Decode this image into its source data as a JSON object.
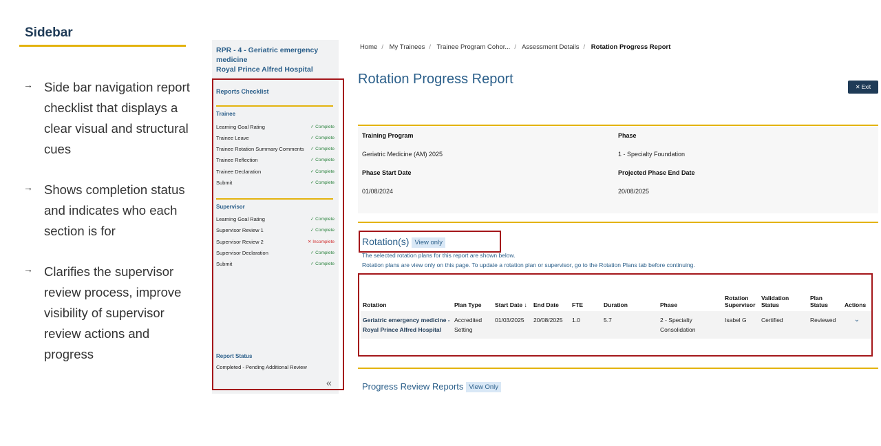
{
  "annotation": {
    "title": "Sidebar",
    "bullets": [
      "Side bar navigation report checklist that displays a clear visual and structural cues",
      "Shows completion status and indicates who each section is for",
      "Clarifies the supervisor review process, improve visibility of supervisor review actions and progress"
    ]
  },
  "sidebar": {
    "context_line1": "RPR - 4 - Geriatric emergency medicine",
    "context_line2": "Royal Prince Alfred Hospital",
    "checklist_title": "Reports Checklist",
    "trainee": {
      "title": "Trainee",
      "items": [
        {
          "label": "Learning Goal Rating",
          "status": "Complete"
        },
        {
          "label": "Trainee Leave",
          "status": "Complete"
        },
        {
          "label": "Trainee Rotation Summary Comments",
          "status": "Complete"
        },
        {
          "label": "Trainee Reflection",
          "status": "Complete"
        },
        {
          "label": "Trainee Declaration",
          "status": "Complete"
        },
        {
          "label": "Submit",
          "status": "Complete"
        }
      ]
    },
    "supervisor": {
      "title": "Supervisor",
      "items": [
        {
          "label": "Learning Goal Rating",
          "status": "Complete"
        },
        {
          "label": "Supervisor Review 1",
          "status": "Complete"
        },
        {
          "label": "Supervisor Review 2",
          "status": "Incomplete"
        },
        {
          "label": "Supervisor Declaration",
          "status": "Complete"
        },
        {
          "label": "Submit",
          "status": "Complete"
        }
      ]
    },
    "report_status_label": "Report Status",
    "report_status_value": "Completed - Pending Additional Review",
    "collapse_glyph": "«"
  },
  "breadcrumb": [
    "Home",
    "My Trainees",
    "Trainee Program Cohor...",
    "Assessment Details",
    "Rotation Progress Report"
  ],
  "page_title": "Rotation Progress Report",
  "exit_label": "✕ Exit",
  "info": {
    "training_program_label": "Training Program",
    "training_program_value": "Geriatric Medicine (AM) 2025",
    "phase_label": "Phase",
    "phase_value": "1 - Specialty Foundation",
    "phase_start_label": "Phase Start Date",
    "phase_start_value": "01/08/2024",
    "projected_end_label": "Projected Phase End Date",
    "projected_end_value": "20/08/2025"
  },
  "rotations": {
    "title": "Rotation(s)",
    "badge": "View only",
    "note1": "The selected rotation plans for this report are shown below.",
    "note2": "Rotation plans are view only on this page. To update a rotation plan or supervisor, go to the Rotation Plans tab before continuing.",
    "columns": [
      "Rotation",
      "Plan Type",
      "Start Date ↓",
      "End Date",
      "FTE",
      "Duration",
      "Phase",
      "Rotation Supervisor",
      "Validation Status",
      "Plan Status",
      "Actions"
    ],
    "rows": [
      [
        "Geriatric emergency medicine - Royal Prince Alfred Hospital",
        "Accredited Setting",
        "01/03/2025",
        "20/08/2025",
        "1.0",
        "5.7",
        "2 - Specialty Consolidation",
        "Isabel G",
        "Certified",
        "Reviewed",
        "⌄"
      ]
    ]
  },
  "progress_reports": {
    "title": "Progress Review Reports",
    "badge": "View Only"
  },
  "colors": {
    "accent_gold": "#e3b30e",
    "brand_blue": "#2b5f8a",
    "highlight_red": "#a4161a",
    "complete_green": "#2e8540",
    "incomplete_red": "#d12d2d"
  }
}
